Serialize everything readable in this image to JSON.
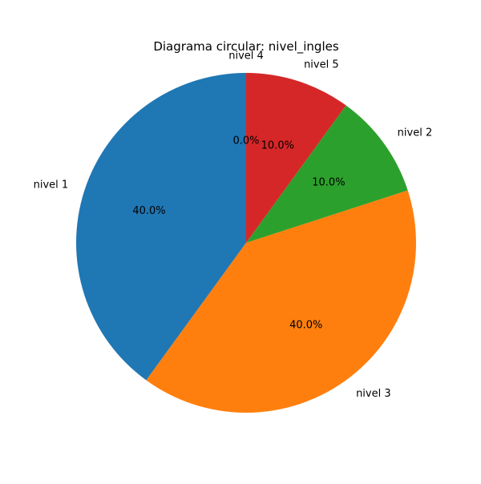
{
  "chart_data": {
    "type": "pie",
    "title": "Diagrama circular: nivel_ingles",
    "start_angle_deg": 90,
    "direction": "counterclockwise",
    "slices": [
      {
        "label": "nivel 1",
        "value": 40.0,
        "pct_label": "40.0%",
        "color": "#1f77b4"
      },
      {
        "label": "nivel 3",
        "value": 40.0,
        "pct_label": "40.0%",
        "color": "#ff7f0e"
      },
      {
        "label": "nivel 2",
        "value": 10.0,
        "pct_label": "10.0%",
        "color": "#2ca02c"
      },
      {
        "label": "nivel 5",
        "value": 10.0,
        "pct_label": "10.0%",
        "color": "#d62728"
      },
      {
        "label": "nivel 4",
        "value": 0.0,
        "pct_label": "0.0%",
        "color": "#9467bd"
      }
    ]
  }
}
